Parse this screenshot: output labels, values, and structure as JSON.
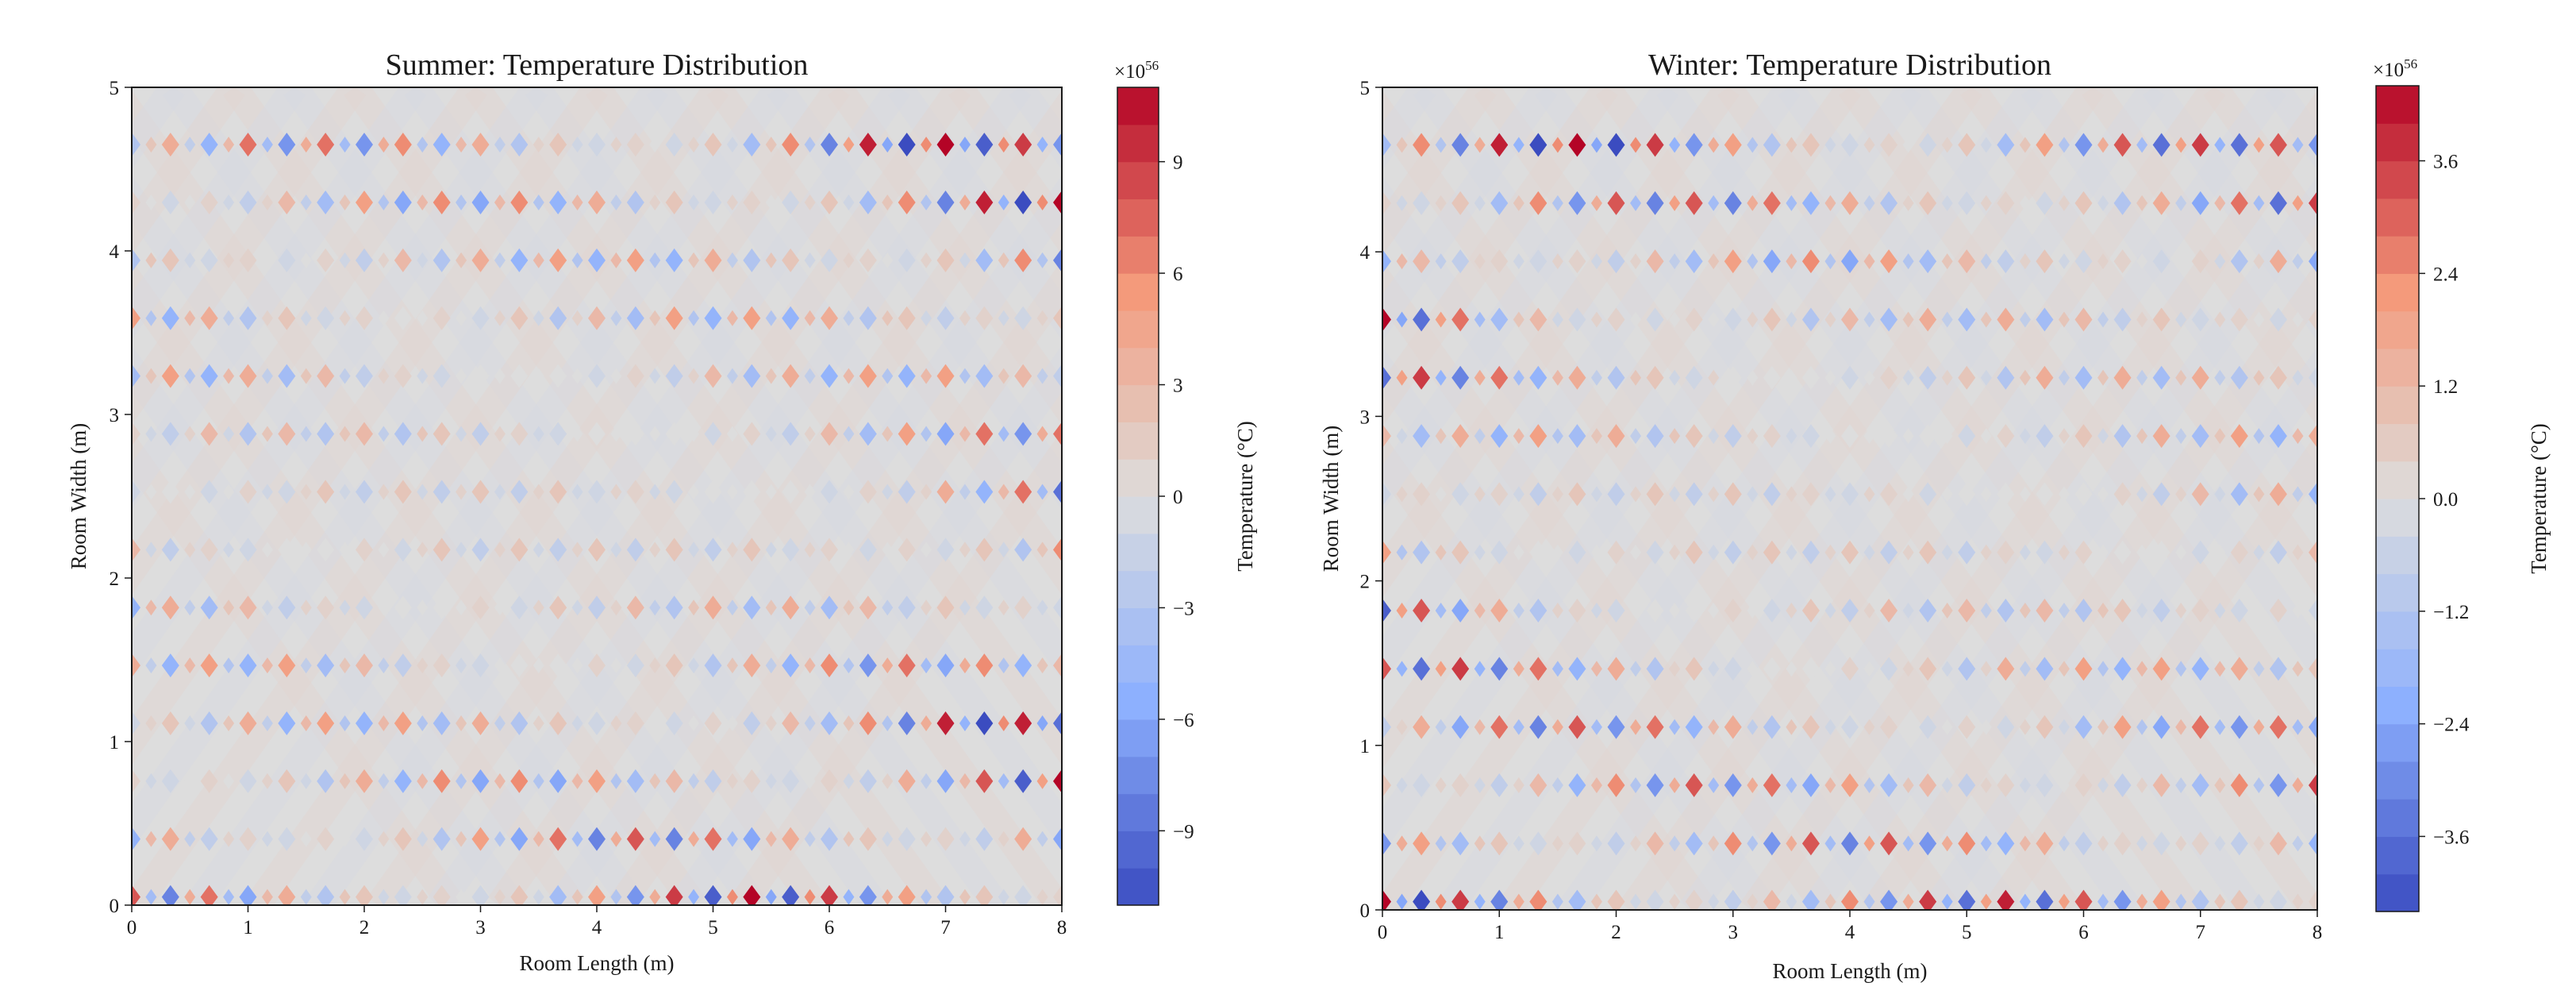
{
  "chart_data": [
    {
      "type": "heatmap",
      "title": "Summer: Temperature Distribution",
      "xlabel": "Room Length (m)",
      "ylabel": "Room Width (m)",
      "xlim": [
        0,
        8
      ],
      "ylim": [
        0,
        5
      ],
      "xticks": [
        "0",
        "1",
        "2",
        "3",
        "4",
        "5",
        "6",
        "7",
        "8"
      ],
      "yticks": [
        "0",
        "1",
        "2",
        "3",
        "4",
        "5"
      ],
      "colorbar": {
        "label": "Temperature (°C)",
        "multiplier": "×10",
        "exponent": "56",
        "range": [
          -11,
          11
        ],
        "ticks": [
          -9,
          -6,
          -3,
          0,
          3,
          6,
          9
        ],
        "tick_labels": [
          "−9",
          "−6",
          "−3",
          "0",
          "3",
          "6",
          "9"
        ],
        "levels": 22,
        "cmap": "coolwarm"
      },
      "field": {
        "nx": 24,
        "ny": 13,
        "band_period": 0.52,
        "amp_left": 0.35,
        "amp_right": 1.0,
        "amp_center": 0.18
      }
    },
    {
      "type": "heatmap",
      "title": "Winter: Temperature Distribution",
      "xlabel": "Room Length (m)",
      "ylabel": "Room Width (m)",
      "xlim": [
        0,
        8
      ],
      "ylim": [
        0,
        5
      ],
      "xticks": [
        "0",
        "1",
        "2",
        "3",
        "4",
        "5",
        "6",
        "7",
        "8"
      ],
      "yticks": [
        "0",
        "1",
        "2",
        "3",
        "4",
        "5"
      ],
      "colorbar": {
        "label": "Temperature (°C)",
        "multiplier": "×10",
        "exponent": "56",
        "range": [
          -4.4,
          4.4
        ],
        "ticks": [
          -3.6,
          -2.4,
          -1.2,
          0.0,
          1.2,
          2.4,
          3.6
        ],
        "tick_labels": [
          "−3.6",
          "−2.4",
          "−1.2",
          "0.0",
          "1.2",
          "2.4",
          "3.6"
        ],
        "levels": 22,
        "cmap": "coolwarm"
      },
      "field": {
        "nx": 24,
        "ny": 13,
        "band_period": 0.52,
        "amp_left": 1.0,
        "amp_right": 0.55,
        "amp_center": 0.15
      }
    }
  ]
}
